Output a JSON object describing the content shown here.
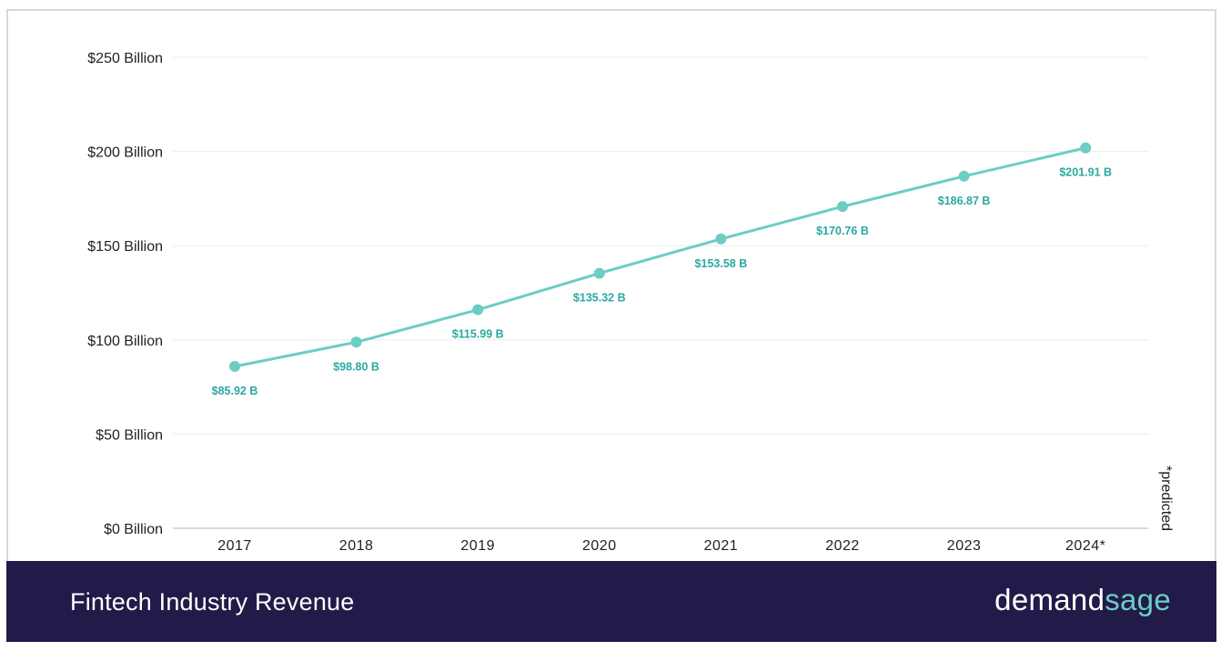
{
  "chart_data": {
    "type": "line",
    "title": "Fintech Industry Revenue",
    "categories": [
      "2017",
      "2018",
      "2019",
      "2020",
      "2021",
      "2022",
      "2023",
      "2024*"
    ],
    "series": [
      {
        "name": "Fintech Industry Revenue",
        "values": [
          85.92,
          98.8,
          115.99,
          135.32,
          153.58,
          170.76,
          186.87,
          201.91
        ],
        "labels": [
          "$85.92 B",
          "$98.80 B",
          "$115.99 B",
          "$135.32 B",
          "$153.58 B",
          "$170.76 B",
          "$186.87 B",
          "$201.91 B"
        ]
      }
    ],
    "yticks": [
      0,
      50,
      100,
      150,
      200,
      250
    ],
    "ytick_labels": [
      "$0 Billion",
      "$50 Billion",
      "$100 Billion",
      "$150 Billion",
      "$200 Billion",
      "$250 Billion"
    ],
    "ylim": [
      0,
      250
    ],
    "xlabel": "",
    "ylabel": "",
    "grid": true,
    "annotation": "*predicted",
    "colors": {
      "line": "#6ccdc5",
      "label": "#2aa9a0",
      "grid": "#ececec"
    }
  },
  "footer": {
    "title": "Fintech Industry Revenue",
    "brand_part1": "demand",
    "brand_part2": "sage",
    "background": "#221a48"
  }
}
